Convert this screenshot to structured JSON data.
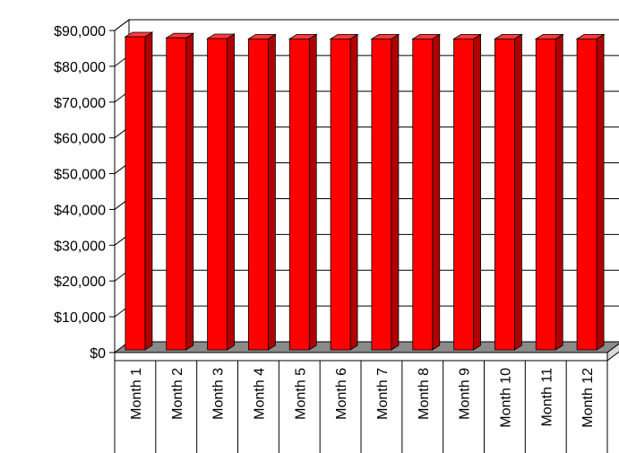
{
  "chart_data": {
    "type": "bar",
    "title": "",
    "xlabel": "",
    "ylabel": "",
    "categories": [
      "Month 1",
      "Month 2",
      "Month 3",
      "Month 4",
      "Month 5",
      "Month 6",
      "Month 7",
      "Month 8",
      "Month 9",
      "Month 10",
      "Month 11",
      "Month 12"
    ],
    "values": [
      87500,
      87200,
      87000,
      86900,
      86900,
      86900,
      86900,
      86900,
      86900,
      86900,
      86900,
      86900
    ],
    "ylim": [
      0,
      90000
    ],
    "yticks": [
      "$0",
      "$10,000",
      "$20,000",
      "$30,000",
      "$40,000",
      "$50,000",
      "$60,000",
      "$70,000",
      "$80,000",
      "$90,000"
    ],
    "grid": true,
    "legend": "none",
    "bar_color": "#ff0000",
    "style": "3d"
  }
}
